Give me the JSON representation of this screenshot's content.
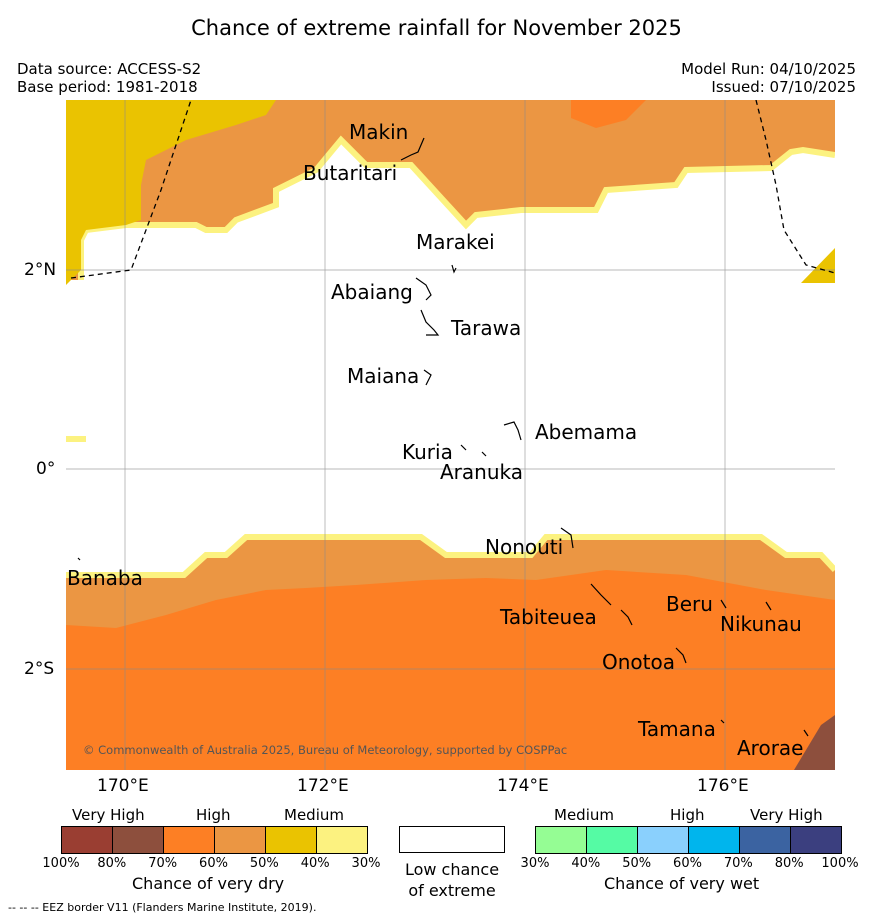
{
  "title": "Chance of extreme rainfall for November 2025",
  "data_source": "Data source: ACCESS-S2",
  "base_period": "Base period: 1981-2018",
  "model_run": "Model Run: 04/10/2025",
  "issued": "Issued: 07/10/2025",
  "y_ticks": [
    "2°N",
    "0°",
    "2°S"
  ],
  "x_ticks": [
    "170°E",
    "172°E",
    "174°E",
    "176°E"
  ],
  "places": [
    "Makin",
    "Butaritari",
    "Marakei",
    "Abaiang",
    "Tarawa",
    "Maiana",
    "Abemama",
    "Kuria",
    "Aranuka",
    "Nonouti",
    "Banaba",
    "Tabiteuea",
    "Beru",
    "Nikunau",
    "Onotoa",
    "Tamana",
    "Arorae"
  ],
  "copyright": "© Commonwealth of Australia 2025, Bureau of Meteorology, supported by COSPPac",
  "legend": {
    "dry": {
      "categories": [
        "Very High",
        "High",
        "Medium"
      ],
      "colors": [
        "#9a3e32",
        "#8d4f3d",
        "#fd7f24",
        "#eb9643",
        "#eac301",
        "#fcf280"
      ],
      "pct": [
        "100%",
        "80%",
        "70%",
        "60%",
        "50%",
        "40%",
        "30%"
      ],
      "caption": "Chance of very dry"
    },
    "neutral": {
      "caption_line1": "Low chance",
      "caption_line2": "of extreme",
      "color": "#ffffff"
    },
    "wet": {
      "categories": [
        "Medium",
        "High",
        "Very High"
      ],
      "colors": [
        "#95fd94",
        "#55fba4",
        "#8ad0fd",
        "#00b5ed",
        "#3b63a1",
        "#3b3f7f"
      ],
      "pct": [
        "30%",
        "40%",
        "50%",
        "60%",
        "70%",
        "80%",
        "100%"
      ],
      "caption": "Chance of very wet"
    }
  },
  "eez_note": "-- -- -- EEZ border V11 (Flanders Marine Institute, 2019)."
}
